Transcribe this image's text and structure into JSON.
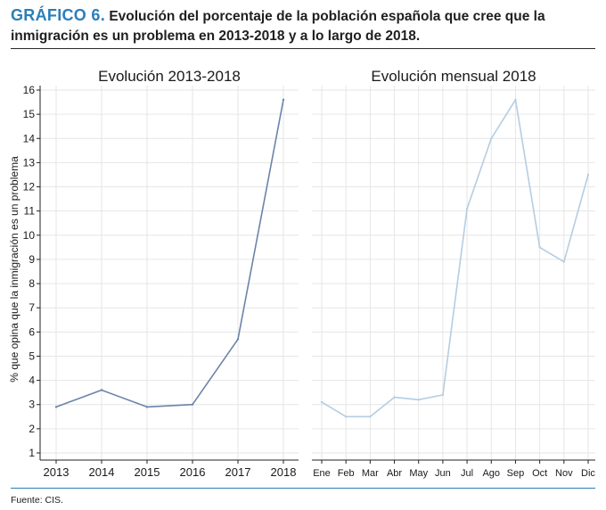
{
  "header": {
    "label": "GRÁFICO 6.",
    "title": "Evolución del porcentaje de la población española que cree que la inmigración es un problema en 2013-2018 y a lo largo de 2018."
  },
  "footer": {
    "source": "Fuente: CIS."
  },
  "colors": {
    "label_blue": "#2a7fb8",
    "line_dark": "#6b84a8",
    "line_light": "#b4cde3",
    "grid": "#e6e6e6"
  },
  "chart_data": [
    {
      "type": "line",
      "title": "Evolución 2013-2018",
      "xlabel": "",
      "ylabel": "% que opina que la inmigración es un problema",
      "categories": [
        "2013",
        "2014",
        "2015",
        "2016",
        "2017",
        "2018"
      ],
      "values": [
        2.9,
        3.6,
        2.9,
        3.0,
        5.7,
        15.6
      ],
      "ylim": [
        1,
        16
      ],
      "yticks": [
        1,
        2,
        3,
        4,
        5,
        6,
        7,
        8,
        9,
        10,
        11,
        12,
        13,
        14,
        15,
        16
      ],
      "grid": true
    },
    {
      "type": "line",
      "title": "Evolución mensual 2018",
      "xlabel": "",
      "ylabel": "",
      "categories": [
        "Ene",
        "Feb",
        "Mar",
        "Abr",
        "May",
        "Jun",
        "Jul",
        "Ago",
        "Sep",
        "Oct",
        "Nov",
        "Dic"
      ],
      "values": [
        3.1,
        2.5,
        2.5,
        3.3,
        3.2,
        3.4,
        11.1,
        14.0,
        15.6,
        9.5,
        8.9,
        12.5
      ],
      "ylim": [
        1,
        16
      ],
      "grid": true
    }
  ]
}
